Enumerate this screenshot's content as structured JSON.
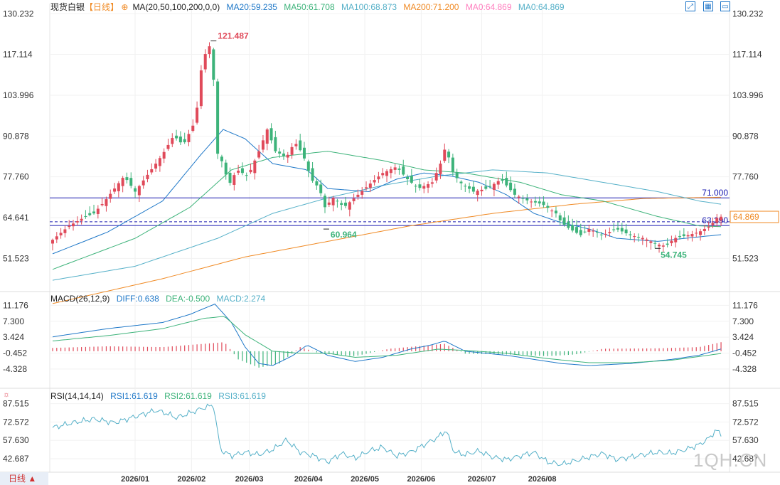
{
  "header": {
    "instrument": "现货白银",
    "period_tag": "【日线】",
    "ma_label": "MA(20,50,100,200,0,0)",
    "ma20": "MA20:59.235",
    "ma50": "MA50:61.708",
    "ma100": "MA100:68.873",
    "ma200": "MA200:71.200",
    "ma0a": "MA0:64.869",
    "ma0b": "MA0:64.869"
  },
  "macd_header": {
    "label": "MACD(26,12,9)",
    "diff": "DIFF:0.638",
    "dea": "DEA:-0.500",
    "macd": "MACD:2.274"
  },
  "rsi_header": {
    "label": "RSI(14,14,14)",
    "rsi1": "RSI1:61.619",
    "rsi2": "RSI2:61.619",
    "rsi3": "RSI3:61.619"
  },
  "toolbar": {
    "icons": [
      "expand-icon",
      "grid-icon",
      "window-icon"
    ]
  },
  "bottom_tab": {
    "label": "日线 ▲"
  },
  "watermark": "1QH.CN",
  "colors": {
    "up": "#e04a5a",
    "down": "#3db37a",
    "ma20": "#1f78c8",
    "ma50": "#3db37a",
    "ma100": "#55b0c8",
    "ma200": "#f08a24",
    "ma0": "#ff7fbf",
    "blue_line": "#1a1ab0"
  },
  "chart_data": [
    {
      "type": "candlestick",
      "yticks": [
        "130.232",
        "117.114",
        "103.996",
        "90.878",
        "77.760",
        "64.641",
        "51.523"
      ],
      "ytick_values": [
        130.232,
        117.114,
        103.996,
        90.878,
        77.76,
        64.641,
        51.523
      ],
      "ylim": [
        42.0,
        133.5
      ],
      "xticks": [
        "2026/01",
        "2026/02",
        "2026/03",
        "2026/04",
        "2026/05",
        "2026/06",
        "2026/07",
        "2026/08"
      ],
      "annotations": {
        "high": "121.487",
        "low_mid": "60.964",
        "low_recent": "54.745"
      },
      "horizontal_lines": [
        {
          "label": "71.000",
          "value": 71.0
        },
        {
          "label": "63.290",
          "value": 63.29,
          "dashed": true
        },
        {
          "value": 62.1
        }
      ],
      "last_price": "64.869",
      "close_path": [
        [
          0,
          57.5
        ],
        [
          12,
          62
        ],
        [
          22,
          64.5
        ],
        [
          30,
          66
        ],
        [
          38,
          70
        ],
        [
          45,
          74
        ],
        [
          52,
          78
        ],
        [
          60,
          73
        ],
        [
          70,
          79
        ],
        [
          80,
          85
        ],
        [
          88,
          91
        ],
        [
          95,
          88
        ],
        [
          104,
          96
        ],
        [
          108,
          112
        ],
        [
          112,
          119
        ],
        [
          116,
          120.5
        ],
        [
          119,
          86
        ],
        [
          124,
          82
        ],
        [
          128,
          75
        ],
        [
          134,
          80
        ],
        [
          142,
          78
        ],
        [
          150,
          86
        ],
        [
          156,
          93
        ],
        [
          162,
          86
        ],
        [
          170,
          84
        ],
        [
          176,
          89
        ],
        [
          182,
          85
        ],
        [
          188,
          77
        ],
        [
          194,
          74
        ],
        [
          198,
          68
        ],
        [
          204,
          71
        ],
        [
          212,
          68
        ],
        [
          222,
          72
        ],
        [
          232,
          76
        ],
        [
          240,
          79
        ],
        [
          250,
          81
        ],
        [
          258,
          77
        ],
        [
          266,
          74
        ],
        [
          276,
          76
        ],
        [
          282,
          82
        ],
        [
          286,
          88
        ],
        [
          290,
          80
        ],
        [
          296,
          76
        ],
        [
          306,
          73
        ],
        [
          316,
          74
        ],
        [
          326,
          77
        ],
        [
          336,
          72
        ],
        [
          346,
          70
        ],
        [
          356,
          69
        ],
        [
          366,
          66
        ],
        [
          370,
          63
        ],
        [
          376,
          61
        ],
        [
          384,
          59
        ],
        [
          390,
          61
        ],
        [
          400,
          59
        ],
        [
          410,
          61
        ],
        [
          420,
          59
        ],
        [
          430,
          58
        ],
        [
          440,
          56
        ],
        [
          446,
          55.5
        ],
        [
          452,
          58
        ],
        [
          462,
          59
        ],
        [
          470,
          60
        ],
        [
          478,
          62
        ],
        [
          484,
          65
        ],
        [
          487,
          64.9
        ]
      ],
      "ma20_path": [
        [
          0,
          53
        ],
        [
          40,
          60
        ],
        [
          80,
          70
        ],
        [
          108,
          85
        ],
        [
          124,
          93
        ],
        [
          140,
          90
        ],
        [
          160,
          82
        ],
        [
          185,
          80
        ],
        [
          200,
          74
        ],
        [
          230,
          73
        ],
        [
          250,
          77
        ],
        [
          270,
          79
        ],
        [
          290,
          78
        ],
        [
          310,
          76
        ],
        [
          330,
          72
        ],
        [
          350,
          66
        ],
        [
          370,
          63
        ],
        [
          390,
          61
        ],
        [
          410,
          58
        ],
        [
          440,
          57
        ],
        [
          460,
          58
        ],
        [
          487,
          59.2
        ]
      ],
      "ma50_path": [
        [
          0,
          48
        ],
        [
          60,
          58
        ],
        [
          100,
          68
        ],
        [
          130,
          80
        ],
        [
          160,
          84
        ],
        [
          200,
          86
        ],
        [
          240,
          83
        ],
        [
          270,
          80
        ],
        [
          300,
          79
        ],
        [
          340,
          76
        ],
        [
          370,
          72
        ],
        [
          400,
          70
        ],
        [
          440,
          65
        ],
        [
          470,
          62
        ],
        [
          487,
          61.7
        ]
      ],
      "ma100_path": [
        [
          0,
          44.5
        ],
        [
          60,
          49
        ],
        [
          120,
          58
        ],
        [
          160,
          66
        ],
        [
          200,
          71
        ],
        [
          240,
          75
        ],
        [
          280,
          78
        ],
        [
          320,
          80
        ],
        [
          360,
          79
        ],
        [
          400,
          76
        ],
        [
          440,
          73
        ],
        [
          470,
          70
        ],
        [
          487,
          68.9
        ]
      ],
      "ma200_path": [
        [
          0,
          37
        ],
        [
          80,
          45
        ],
        [
          140,
          52
        ],
        [
          200,
          57
        ],
        [
          260,
          62
        ],
        [
          320,
          66
        ],
        [
          380,
          69
        ],
        [
          430,
          70.8
        ],
        [
          487,
          71.2
        ]
      ]
    },
    {
      "type": "macd",
      "yticks": [
        "11.176",
        "7.300",
        "3.424",
        "-0.452",
        "-4.328"
      ],
      "ytick_values": [
        11.176,
        7.3,
        3.424,
        -0.452,
        -4.328
      ],
      "ylim": [
        -8.0,
        13.5
      ],
      "diff_path": [
        [
          0,
          3.5
        ],
        [
          40,
          5.5
        ],
        [
          80,
          7
        ],
        [
          100,
          9
        ],
        [
          118,
          11.5
        ],
        [
          130,
          7
        ],
        [
          140,
          1
        ],
        [
          150,
          -3
        ],
        [
          160,
          -3.5
        ],
        [
          175,
          -1
        ],
        [
          185,
          1.5
        ],
        [
          200,
          -1
        ],
        [
          220,
          -2.5
        ],
        [
          240,
          -1.5
        ],
        [
          260,
          0.5
        ],
        [
          275,
          1.5
        ],
        [
          285,
          2.5
        ],
        [
          300,
          0
        ],
        [
          330,
          -1
        ],
        [
          350,
          -2
        ],
        [
          370,
          -3
        ],
        [
          390,
          -3.5
        ],
        [
          420,
          -3
        ],
        [
          450,
          -2
        ],
        [
          470,
          -1
        ],
        [
          487,
          0.64
        ]
      ],
      "dea_path": [
        [
          0,
          2.5
        ],
        [
          40,
          3.8
        ],
        [
          80,
          5.5
        ],
        [
          110,
          8
        ],
        [
          125,
          8.5
        ],
        [
          140,
          4
        ],
        [
          160,
          0
        ],
        [
          180,
          -0.5
        ],
        [
          200,
          -0.5
        ],
        [
          220,
          -1.5
        ],
        [
          250,
          -1
        ],
        [
          280,
          0.5
        ],
        [
          300,
          0.2
        ],
        [
          330,
          -0.5
        ],
        [
          360,
          -1.8
        ],
        [
          390,
          -2.8
        ],
        [
          420,
          -2.8
        ],
        [
          450,
          -2.2
        ],
        [
          470,
          -1.3
        ],
        [
          487,
          -0.5
        ]
      ],
      "hist_pattern": [
        [
          0,
          0.8
        ],
        [
          40,
          1.2
        ],
        [
          80,
          1.0
        ],
        [
          110,
          1.8
        ],
        [
          125,
          2.2
        ],
        [
          135,
          -2
        ],
        [
          150,
          -4
        ],
        [
          165,
          -3
        ],
        [
          180,
          1.0
        ],
        [
          195,
          -0.6
        ],
        [
          220,
          -1.2
        ],
        [
          245,
          0.6
        ],
        [
          265,
          1.2
        ],
        [
          285,
          1.8
        ],
        [
          300,
          -0.6
        ],
        [
          330,
          -0.8
        ],
        [
          360,
          -1.2
        ],
        [
          380,
          -0.8
        ],
        [
          400,
          0.6
        ],
        [
          440,
          0.7
        ],
        [
          470,
          1.0
        ],
        [
          487,
          2.27
        ]
      ]
    },
    {
      "type": "rsi",
      "yticks": [
        "87.515",
        "72.572",
        "57.630",
        "42.687"
      ],
      "ytick_values": [
        87.515,
        72.572,
        57.63,
        42.687
      ],
      "ylim": [
        34.0,
        96.0
      ],
      "rsi_path": [
        [
          0,
          68
        ],
        [
          15,
          72
        ],
        [
          30,
          75
        ],
        [
          45,
          72
        ],
        [
          60,
          77
        ],
        [
          75,
          82
        ],
        [
          82,
          80
        ],
        [
          90,
          76
        ],
        [
          100,
          80
        ],
        [
          112,
          85
        ],
        [
          117,
          86
        ],
        [
          122,
          50
        ],
        [
          130,
          45
        ],
        [
          140,
          48
        ],
        [
          150,
          46
        ],
        [
          160,
          50
        ],
        [
          170,
          58
        ],
        [
          180,
          48
        ],
        [
          190,
          45
        ],
        [
          200,
          40
        ],
        [
          210,
          47
        ],
        [
          220,
          43
        ],
        [
          230,
          49
        ],
        [
          240,
          52
        ],
        [
          250,
          45
        ],
        [
          260,
          48
        ],
        [
          270,
          54
        ],
        [
          280,
          60
        ],
        [
          286,
          66
        ],
        [
          292,
          48
        ],
        [
          300,
          46
        ],
        [
          310,
          49
        ],
        [
          320,
          44
        ],
        [
          330,
          42
        ],
        [
          340,
          45
        ],
        [
          350,
          48
        ],
        [
          360,
          40
        ],
        [
          370,
          38
        ],
        [
          380,
          41
        ],
        [
          390,
          44
        ],
        [
          400,
          47
        ],
        [
          410,
          42
        ],
        [
          420,
          44
        ],
        [
          430,
          46
        ],
        [
          440,
          48
        ],
        [
          450,
          47
        ],
        [
          460,
          50
        ],
        [
          470,
          54
        ],
        [
          478,
          60
        ],
        [
          482,
          66
        ],
        [
          487,
          61.6
        ]
      ]
    }
  ]
}
